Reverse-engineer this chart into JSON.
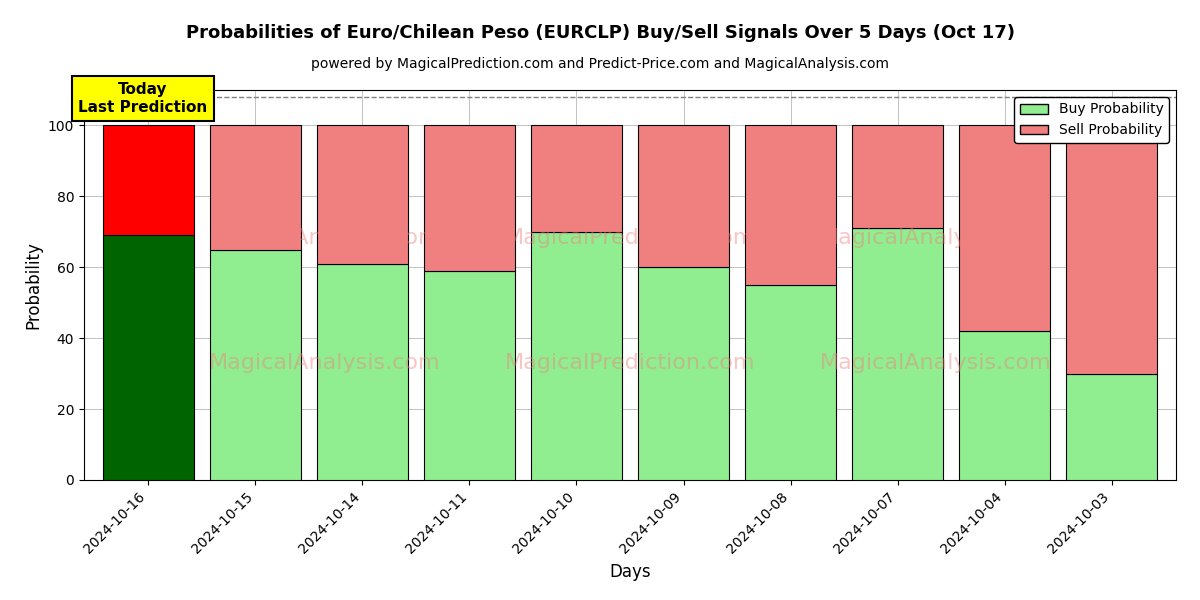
{
  "title": "Probabilities of Euro/Chilean Peso (EURCLP) Buy/Sell Signals Over 5 Days (Oct 17)",
  "subtitle": "powered by MagicalPrediction.com and Predict-Price.com and MagicalAnalysis.com",
  "xlabel": "Days",
  "ylabel": "Probability",
  "categories": [
    "2024-10-16",
    "2024-10-15",
    "2024-10-14",
    "2024-10-11",
    "2024-10-10",
    "2024-10-09",
    "2024-10-08",
    "2024-10-07",
    "2024-10-04",
    "2024-10-03"
  ],
  "buy_values": [
    69,
    65,
    61,
    59,
    70,
    60,
    55,
    71,
    42,
    30
  ],
  "sell_values": [
    31,
    35,
    39,
    41,
    30,
    40,
    45,
    29,
    58,
    70
  ],
  "today_buy_color": "#006400",
  "today_sell_color": "#ff0000",
  "buy_color": "#90EE90",
  "sell_color": "#F08080",
  "today_annotation": "Today\nLast Prediction",
  "annotation_bg_color": "#ffff00",
  "ylim": [
    0,
    110
  ],
  "yticks": [
    0,
    20,
    40,
    60,
    80,
    100
  ],
  "dashed_line_y": 108,
  "legend_buy_label": "Buy Probability",
  "legend_sell_label": "Sell Probability",
  "bar_width": 0.85,
  "background_color": "#ffffff",
  "grid_color": "#aaaaaa"
}
